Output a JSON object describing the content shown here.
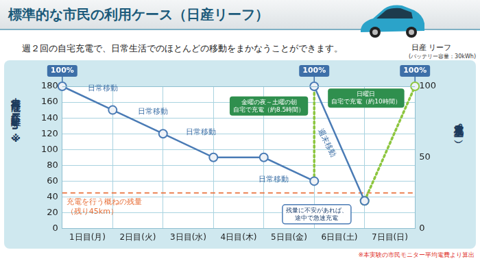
{
  "chart_data": {
    "type": "line",
    "title": "標準的な市民の利用ケース（日産リーフ）",
    "subtitle": "週２回の自宅充電で、日常生活でのほとんどの移動をまかなうことができます。",
    "image_caption": [
      "日産 リーフ",
      "(バッテリー容量：30kWh)"
    ],
    "ylabel": "走行可能な距離（km）※",
    "y2label": "充電残量（%）",
    "footnote": "※本実験の市民モニター平均電費より算出",
    "xlim": [
      0,
      7
    ],
    "xticks": [
      {
        "value": 0.5,
        "label": "1日目(月)"
      },
      {
        "value": 1.5,
        "label": "2日目(火)"
      },
      {
        "value": 2.5,
        "label": "3日目(水)"
      },
      {
        "value": 3.5,
        "label": "4日目(木)"
      },
      {
        "value": 4.5,
        "label": "5日目(金)"
      },
      {
        "value": 5.5,
        "label": "6日目(土)"
      },
      {
        "value": 6.5,
        "label": "7日目(日)"
      }
    ],
    "ylim": [
      0,
      180
    ],
    "yticks": [
      0,
      20,
      40,
      60,
      80,
      100,
      120,
      140,
      160,
      180
    ],
    "y2lim": [
      0,
      100
    ],
    "y2ticks": [
      0,
      50,
      100
    ],
    "grid": true,
    "series": [
      {
        "x": [
          0,
          1,
          2,
          3,
          4,
          5
        ],
        "values": [
          180,
          150,
          120,
          90,
          90,
          60
        ],
        "color": "#4a7bb5",
        "line_style": "solid",
        "marker": "circle"
      },
      {
        "x": [
          5,
          6
        ],
        "values": [
          180,
          35
        ],
        "color": "#4a7bb5",
        "line_style": "solid",
        "marker": "circle"
      },
      {
        "x": [
          5,
          5
        ],
        "values": [
          60,
          180
        ],
        "color": "#8dc63f",
        "line_style": "dotted",
        "marker": "none"
      },
      {
        "x": [
          6,
          7
        ],
        "values": [
          35,
          180
        ],
        "color": "#8dc63f",
        "line_style": "dotted",
        "marker": "circle"
      }
    ],
    "threshold": {
      "value": 45,
      "text": [
        "充電を行う概ねの残量",
        "（残り45km）"
      ],
      "color": "#e8703a",
      "line_style": "dashed"
    },
    "labels": [
      {
        "text": "日常移動",
        "x": 0.8,
        "y": 177
      },
      {
        "text": "日常移動",
        "x": 1.8,
        "y": 148
      },
      {
        "text": "日常移動",
        "x": 2.75,
        "y": 122
      },
      {
        "text": "日常移動",
        "x": 4.2,
        "y": 62
      }
    ],
    "slanted_labels": [
      {
        "text": "週末移動",
        "x": 5.25,
        "y": 108
      }
    ],
    "charge_notes": [
      {
        "text": [
          "金曜の夜～土曜の朝",
          "自宅で充電（約8.5時間）"
        ],
        "x": 4.1,
        "y": 155
      },
      {
        "text": [
          "日曜日",
          "自宅で充電（約10時間）"
        ],
        "x": 6.03,
        "y": 165
      }
    ],
    "notes": [
      {
        "text": [
          "残量に不安があれば、",
          "途中で急速充電"
        ],
        "x": 5.05,
        "y": 18
      }
    ],
    "point_labels": [
      {
        "text": "100%",
        "x": 0,
        "y": 180
      },
      {
        "text": "100%",
        "x": 5,
        "y": 180
      },
      {
        "text": "100%",
        "x": 7,
        "y": 180
      }
    ]
  }
}
